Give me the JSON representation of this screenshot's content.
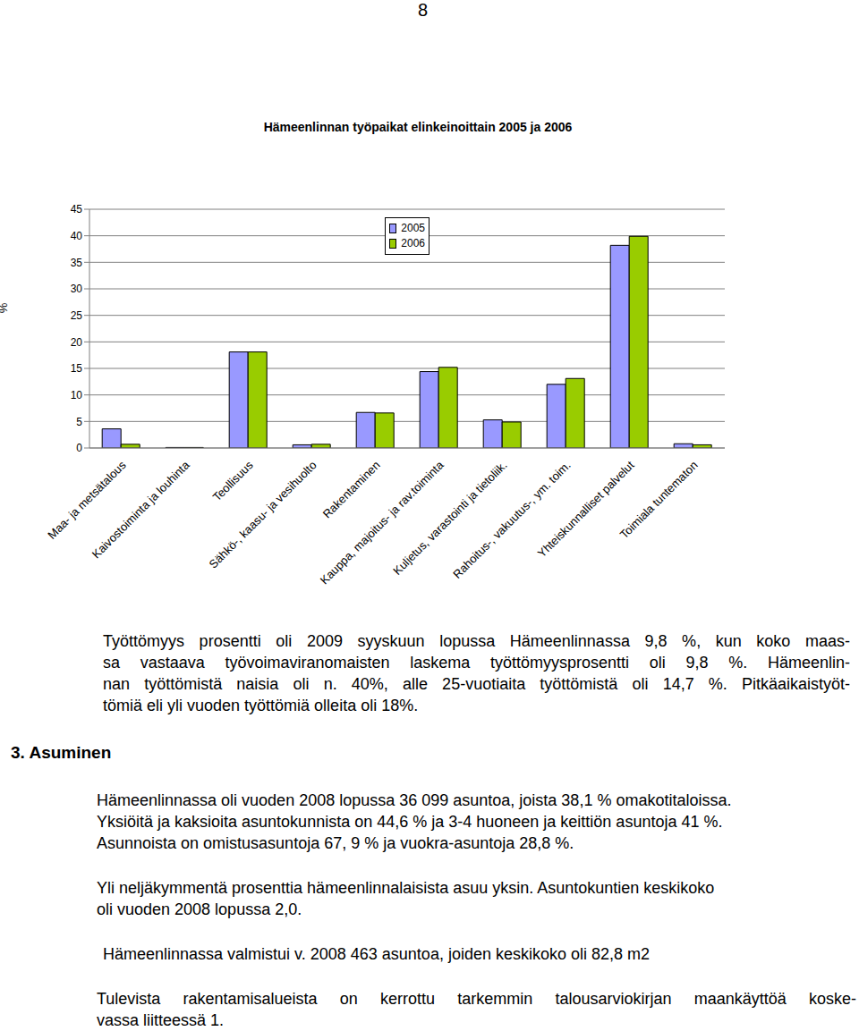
{
  "page_number": "8",
  "chart_data": {
    "type": "bar",
    "title": "Hämeenlinnan työpaikat elinkeinoittain 2005 ja 2006",
    "y_label": "%",
    "categories": [
      "Maa- ja metsätalous",
      "Kaivostoiminta ja louhinta",
      "Teollisuus",
      "Sähkö-, kaasu- ja vesihuolto",
      "Rakentaminen",
      "Kauppa, majoitus- ja rav.toiminta",
      "Kuljetus, varastointi ja tietoliik.",
      "Rahoitus-, vakuutus-, ym. toim.",
      "Yhteiskunnalliset palvelut",
      "Toimiala tuntematon"
    ],
    "series": [
      {
        "name": "2005",
        "color": "#9999ff",
        "values": [
          3.6,
          0.1,
          18.1,
          0.6,
          6.7,
          14.4,
          5.3,
          12.0,
          38.2,
          0.8
        ]
      },
      {
        "name": "2006",
        "color": "#99cc00",
        "values": [
          0.7,
          0.1,
          18.1,
          0.7,
          6.6,
          15.2,
          4.9,
          13.1,
          39.9,
          0.6
        ]
      }
    ],
    "ylim": [
      0,
      45
    ],
    "yticks": [
      0,
      5,
      10,
      15,
      20,
      25,
      30,
      35,
      40,
      45
    ],
    "grid": true,
    "legend": "upper center"
  },
  "employment_text": [
    "Työttömyys prosentti oli 2009 syyskuun lopussa Hämeenlinnassa 9,8 %, kun koko maas-",
    "sa vastaava työvoimaviranomaisten laskema työttömyysprosentti oli 9,8 %. Hämeenlin-",
    "nan työttömistä naisia oli n. 40%, alle 25-vuotiaita työttömistä oli 14,7 %. Pitkäaikaistyöt-",
    "tömiä eli yli vuoden työttömiä olleita oli 18%."
  ],
  "section": {
    "heading": "3. Asuminen",
    "paragraphs": [
      [
        "Hämeenlinnassa oli vuoden 2008 lopussa 36 099 asuntoa, joista 38,1 % omakotitaloissa.",
        "Yksiöitä ja kaksioita asuntokunnista on 44,6 % ja 3-4 huoneen ja keittiön asuntoja 41 %.",
        "Asunnoista on omistusasuntoja 67, 9 % ja vuokra-asuntoja 28,8 %."
      ],
      [
        "Yli neljäkymmentä prosenttia hämeenlinnalaisista asuu yksin. Asuntokuntien keskikoko",
        "oli vuoden 2008 lopussa 2,0."
      ],
      [
        "Hämeenlinnassa valmistui v. 2008 463 asuntoa, joiden keskikoko oli 82,8 m2"
      ],
      [
        "Tulevista rakentamisalueista on kerrottu tarkemmin talousarviokirjan maankäyttöä koske-",
        "vassa liitteessä 1."
      ]
    ]
  }
}
